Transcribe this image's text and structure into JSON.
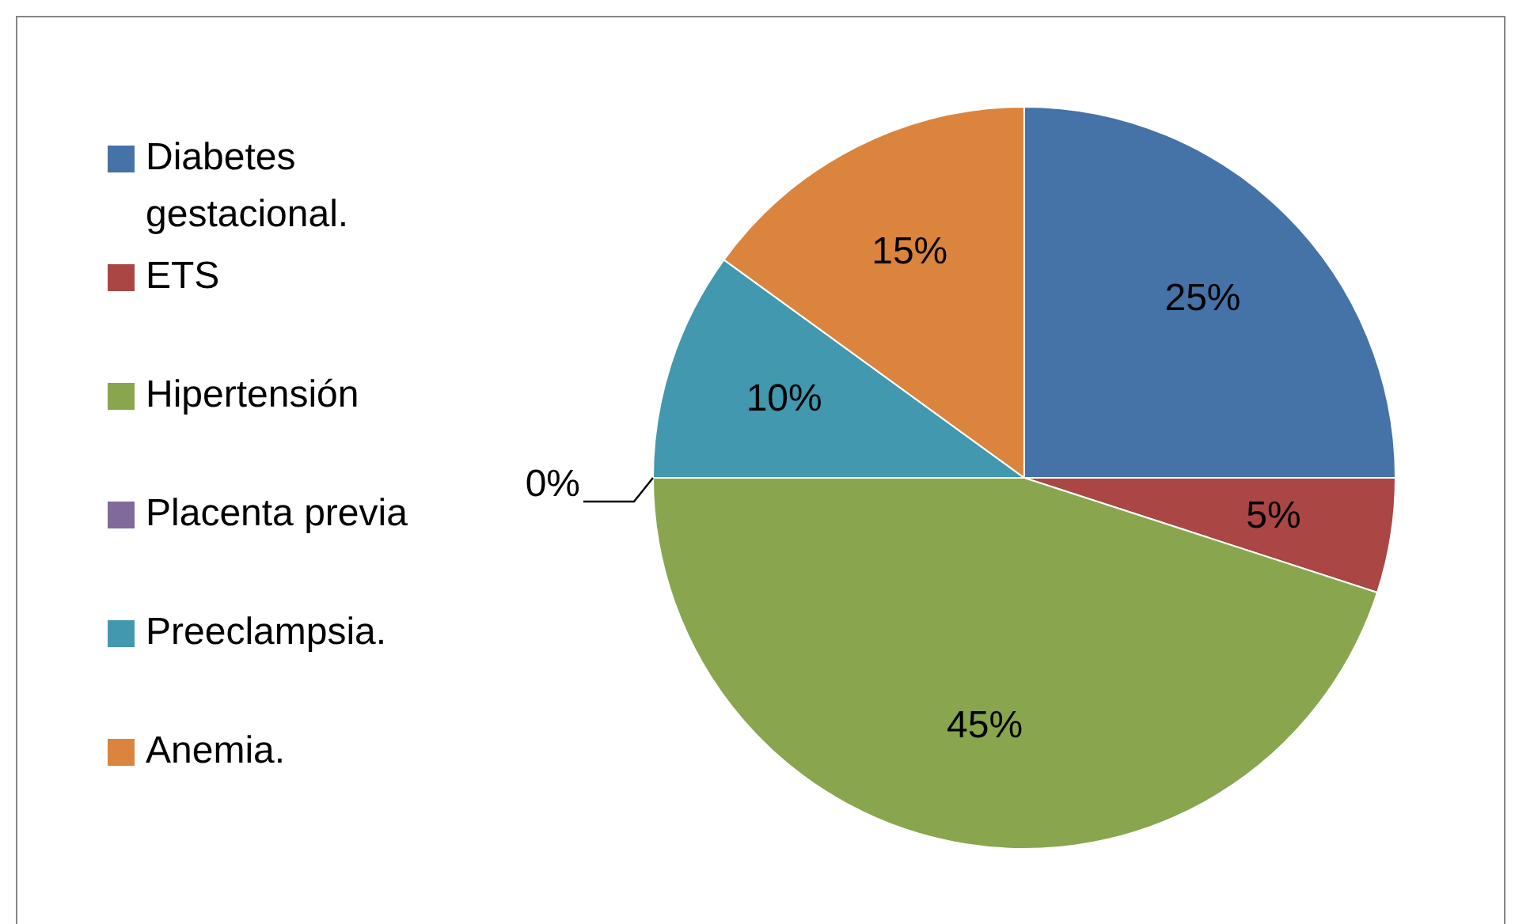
{
  "chart_data": {
    "type": "pie",
    "categories": [
      "Diabetes gestacional.",
      "ETS",
      "Hipertensión",
      "Placenta previa",
      "Preeclampsia.",
      "Anemia."
    ],
    "values": [
      25,
      5,
      45,
      0,
      10,
      15
    ],
    "colors": [
      "#4572a7",
      "#aa4643",
      "#89a54e",
      "#80699b",
      "#4198af",
      "#db843d"
    ],
    "value_labels": [
      "25%",
      "5%",
      "45%",
      "0%",
      "10%",
      "15%"
    ],
    "legend": "left"
  }
}
